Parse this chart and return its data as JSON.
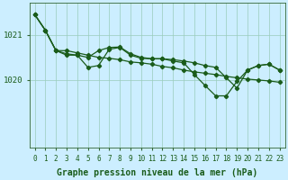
{
  "background_color": "#cceeff",
  "plot_bg_color": "#cceeff",
  "grid_color": "#99ccbb",
  "line_color": "#1a5c1a",
  "marker_color": "#1a5c1a",
  "xlabel": "Graphe pression niveau de la mer (hPa)",
  "xlabel_fontsize": 7.0,
  "ylabel_fontsize": 6.5,
  "tick_fontsize": 5.5,
  "ylim": [
    1018.5,
    1021.7
  ],
  "xlim": [
    -0.5,
    23.5
  ],
  "yticks": [
    1020,
    1021
  ],
  "xticks": [
    0,
    1,
    2,
    3,
    4,
    5,
    6,
    7,
    8,
    9,
    10,
    11,
    12,
    13,
    14,
    15,
    16,
    17,
    18,
    19,
    20,
    21,
    22,
    23
  ],
  "series1": [
    1021.45,
    1021.1,
    1020.65,
    1020.65,
    1020.6,
    1020.55,
    1020.5,
    1020.48,
    1020.45,
    1020.4,
    1020.38,
    1020.35,
    1020.3,
    1020.27,
    1020.22,
    1020.18,
    1020.15,
    1020.12,
    1020.08,
    1020.05,
    1020.02,
    1020.0,
    1019.98,
    1019.95
  ],
  "series2": [
    1021.45,
    1021.1,
    1020.65,
    1020.58,
    1020.55,
    1020.5,
    1020.65,
    1020.72,
    1020.73,
    1020.58,
    1020.5,
    1020.47,
    1020.47,
    1020.45,
    1020.42,
    1020.38,
    1020.32,
    1020.28,
    1020.05,
    1019.82,
    1020.22,
    1020.32,
    1020.35,
    1020.22
  ],
  "series3": [
    1021.45,
    1021.1,
    1020.65,
    1020.55,
    1020.55,
    1020.28,
    1020.32,
    1020.68,
    1020.72,
    1020.55,
    1020.48,
    1020.47,
    1020.47,
    1020.42,
    1020.38,
    1020.12,
    1019.88,
    1019.65,
    1019.65,
    1019.97,
    1020.22,
    1020.32,
    1020.35,
    1020.22
  ]
}
